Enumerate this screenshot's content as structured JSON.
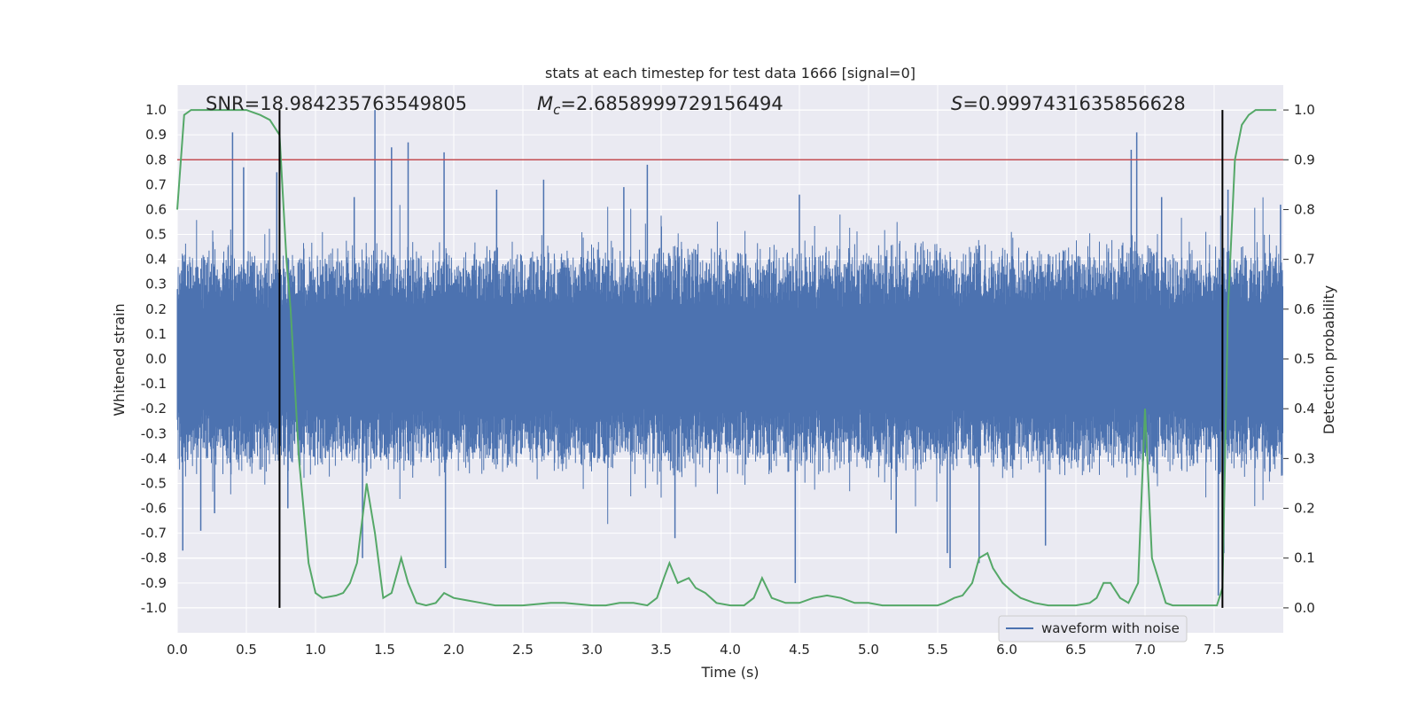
{
  "chart_data": {
    "type": "line",
    "title": "stats at each timestep for test data 1666 [signal=0]",
    "xlabel": "Time (s)",
    "ylabel": "Whitened strain",
    "y2label": "Detection probability",
    "xlim": [
      0.0,
      8.0
    ],
    "ylim": [
      -1.1,
      1.1
    ],
    "y2lim": [
      -0.05,
      1.05
    ],
    "xticks": [
      "0.0",
      "0.5",
      "1.0",
      "1.5",
      "2.0",
      "2.5",
      "3.0",
      "3.5",
      "4.0",
      "4.5",
      "5.0",
      "5.5",
      "6.0",
      "6.5",
      "7.0",
      "7.5"
    ],
    "yticks": [
      "1.0",
      "0.9",
      "0.8",
      "0.7",
      "0.6",
      "0.5",
      "0.4",
      "0.3",
      "0.2",
      "0.1",
      "0.0",
      "-0.1",
      "-0.2",
      "-0.3",
      "-0.4",
      "-0.5",
      "-0.6",
      "-0.7",
      "-0.8",
      "-0.9",
      "-1.0"
    ],
    "y2ticks": [
      "1.0",
      "0.9",
      "0.8",
      "0.7",
      "0.6",
      "0.5",
      "0.4",
      "0.3",
      "0.2",
      "0.1",
      "0.0"
    ],
    "grid": true,
    "legend_position": "lower-right",
    "annotations": {
      "snr": "SNR=18.984235763549805",
      "mc_symbol": "M",
      "mc_sub": "c",
      "mc_value": "=2.6858999729156494",
      "s_symbol": "S",
      "s_value": "=0.9997431635856628"
    },
    "threshold_line": {
      "axis": "y2",
      "value": 0.9,
      "color": "#c44e52"
    },
    "vertical_lines": {
      "x": [
        0.74,
        7.56
      ],
      "color": "#000000"
    },
    "series": [
      {
        "name": "waveform with noise",
        "axis": "y",
        "color": "#4c72b0",
        "kind": "noise",
        "typical_amplitude": 0.42,
        "peaks": [
          {
            "x": 0.04,
            "y": -0.77
          },
          {
            "x": 0.17,
            "y": -0.69
          },
          {
            "x": 0.27,
            "y": -0.62
          },
          {
            "x": 0.4,
            "y": 0.91
          },
          {
            "x": 0.48,
            "y": 0.77
          },
          {
            "x": 0.72,
            "y": 0.75
          },
          {
            "x": 0.8,
            "y": -0.6
          },
          {
            "x": 1.28,
            "y": 0.65
          },
          {
            "x": 1.34,
            "y": -0.8
          },
          {
            "x": 1.43,
            "y": 1.0
          },
          {
            "x": 1.55,
            "y": 0.85
          },
          {
            "x": 1.67,
            "y": 0.87
          },
          {
            "x": 1.93,
            "y": 0.83
          },
          {
            "x": 1.94,
            "y": -0.84
          },
          {
            "x": 2.31,
            "y": 0.68
          },
          {
            "x": 2.65,
            "y": 0.72
          },
          {
            "x": 3.23,
            "y": 0.69
          },
          {
            "x": 3.4,
            "y": 0.78
          },
          {
            "x": 3.6,
            "y": -0.72
          },
          {
            "x": 4.47,
            "y": -0.9
          },
          {
            "x": 4.5,
            "y": 0.66
          },
          {
            "x": 5.2,
            "y": -0.7
          },
          {
            "x": 5.57,
            "y": -0.78
          },
          {
            "x": 5.59,
            "y": -0.84
          },
          {
            "x": 5.8,
            "y": -0.82
          },
          {
            "x": 6.28,
            "y": -0.75
          },
          {
            "x": 6.9,
            "y": 0.84
          },
          {
            "x": 6.94,
            "y": 0.91
          },
          {
            "x": 7.12,
            "y": 0.65
          },
          {
            "x": 7.53,
            "y": -0.95
          },
          {
            "x": 7.57,
            "y": -0.78
          },
          {
            "x": 7.6,
            "y": 0.68
          },
          {
            "x": 7.98,
            "y": 0.62
          }
        ]
      },
      {
        "name": "",
        "axis": "y2",
        "color": "#55a868",
        "x": [
          0.0,
          0.05,
          0.1,
          0.2,
          0.3,
          0.4,
          0.5,
          0.6,
          0.67,
          0.74,
          0.79,
          0.82,
          0.88,
          0.95,
          1.0,
          1.05,
          1.15,
          1.2,
          1.25,
          1.3,
          1.37,
          1.43,
          1.49,
          1.55,
          1.62,
          1.67,
          1.73,
          1.8,
          1.87,
          1.93,
          2.0,
          2.1,
          2.2,
          2.3,
          2.5,
          2.7,
          2.8,
          3.0,
          3.1,
          3.2,
          3.3,
          3.4,
          3.47,
          3.52,
          3.56,
          3.62,
          3.7,
          3.75,
          3.82,
          3.9,
          4.0,
          4.1,
          4.17,
          4.23,
          4.3,
          4.4,
          4.5,
          4.6,
          4.7,
          4.8,
          4.9,
          5.0,
          5.1,
          5.2,
          5.4,
          5.5,
          5.55,
          5.62,
          5.68,
          5.75,
          5.8,
          5.86,
          5.9,
          5.97,
          6.05,
          6.1,
          6.2,
          6.3,
          6.4,
          6.5,
          6.6,
          6.65,
          6.7,
          6.75,
          6.82,
          6.88,
          6.95,
          7.0,
          7.05,
          7.15,
          7.2,
          7.3,
          7.45,
          7.52,
          7.56,
          7.6,
          7.65,
          7.7,
          7.75,
          7.8,
          7.9,
          7.95
        ],
        "y": [
          0.8,
          0.99,
          1.0,
          1.0,
          1.0,
          1.0,
          1.0,
          0.99,
          0.98,
          0.95,
          0.7,
          0.6,
          0.3,
          0.09,
          0.03,
          0.02,
          0.025,
          0.03,
          0.05,
          0.09,
          0.25,
          0.15,
          0.02,
          0.03,
          0.1,
          0.05,
          0.01,
          0.005,
          0.01,
          0.03,
          0.02,
          0.015,
          0.01,
          0.005,
          0.005,
          0.01,
          0.01,
          0.005,
          0.005,
          0.01,
          0.01,
          0.005,
          0.02,
          0.06,
          0.09,
          0.05,
          0.06,
          0.04,
          0.03,
          0.01,
          0.005,
          0.005,
          0.02,
          0.06,
          0.02,
          0.01,
          0.01,
          0.02,
          0.025,
          0.02,
          0.01,
          0.01,
          0.005,
          0.005,
          0.005,
          0.005,
          0.01,
          0.02,
          0.025,
          0.05,
          0.1,
          0.11,
          0.08,
          0.05,
          0.03,
          0.02,
          0.01,
          0.005,
          0.005,
          0.005,
          0.01,
          0.02,
          0.05,
          0.05,
          0.02,
          0.01,
          0.05,
          0.4,
          0.1,
          0.01,
          0.005,
          0.005,
          0.005,
          0.005,
          0.04,
          0.6,
          0.9,
          0.97,
          0.99,
          1.0,
          1.0,
          1.0
        ]
      }
    ]
  }
}
